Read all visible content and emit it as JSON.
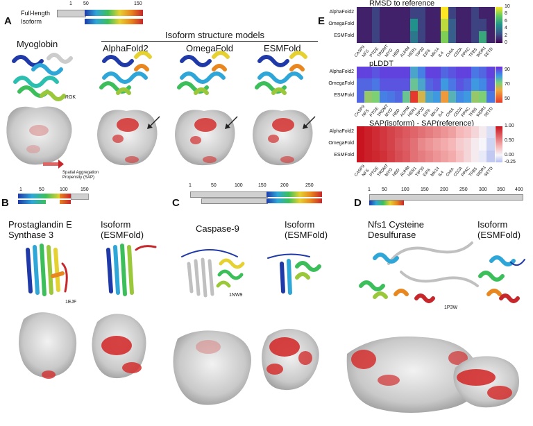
{
  "panels": {
    "A": {
      "letter": "A",
      "legend": {
        "full_label": "Full-length",
        "iso_label": "Isoform",
        "ticks": [
          "1",
          "50",
          "150"
        ]
      },
      "protein": "Myoglobin",
      "group_title": "Isoform structure models",
      "models": [
        "AlphaFold2",
        "OmegaFold",
        "ESMFold"
      ],
      "pdb": "3RGK",
      "sap_label_1": "Spatial Aggregation",
      "sap_label_2": "Propensity (SAP)"
    },
    "B": {
      "letter": "B",
      "ticks": [
        "1",
        "50",
        "100",
        "150"
      ],
      "protein_1": "Prostaglandin E",
      "protein_2": "Synthase 3",
      "iso_1": "Isoform",
      "iso_2": "(ESMFold)",
      "pdb": "1EJF"
    },
    "C": {
      "letter": "C",
      "ticks": [
        "1",
        "50",
        "100",
        "150",
        "200",
        "250"
      ],
      "protein": "Caspase-9",
      "iso_1": "Isoform",
      "iso_2": "(ESMFold)",
      "pdb": "1NW9"
    },
    "D": {
      "letter": "D",
      "ticks": [
        "1",
        "50",
        "100",
        "150",
        "200",
        "250",
        "300",
        "350",
        "400"
      ],
      "protein_1": "Nfs1 Cysteine",
      "protein_2": "Desulfurase",
      "iso_1": "Isoform",
      "iso_2": "(ESMFold)",
      "pdb": "1P3W"
    },
    "E": {
      "letter": "E"
    }
  },
  "chart_data": [
    {
      "type": "heatmap",
      "title": "RMSD to reference",
      "rows": [
        "AlphaFold2",
        "OmegaFold",
        "ESMFold"
      ],
      "columns": [
        "CASP9",
        "NFS",
        "PTGE",
        "TRDMT",
        "MYG",
        "HBD",
        "AUHM",
        "HER1",
        "TIP30",
        "EIF6",
        "MK14",
        "IL4",
        "CHIA",
        "CD2A",
        "PPAC",
        "TFB5",
        "WDR1",
        "SETD"
      ],
      "values": [
        [
          1,
          1,
          2,
          1,
          1,
          1,
          1,
          2,
          2,
          1,
          1,
          10,
          2,
          1,
          1,
          2,
          1,
          1
        ],
        [
          1,
          1,
          2,
          1,
          1,
          1,
          1,
          5,
          2,
          1,
          1,
          9,
          3,
          1,
          1,
          2,
          2,
          1
        ],
        [
          1,
          1,
          2,
          1,
          1,
          1,
          1,
          4,
          2,
          1,
          1,
          8,
          3,
          1,
          1,
          2,
          6,
          1
        ]
      ],
      "colorbar": {
        "min": 0,
        "max": 10,
        "ticks": [
          "10",
          "8",
          "6",
          "4",
          "2",
          "0"
        ]
      }
    },
    {
      "type": "heatmap",
      "title": "pLDDT",
      "rows": [
        "AlphaFold2",
        "OmegaFold",
        "ESMFold"
      ],
      "columns": [
        "CASP9",
        "NFS",
        "PTGE",
        "TRDMT",
        "MYG",
        "HBD",
        "AUHM",
        "HER1",
        "TIP30",
        "EIF6",
        "MK14",
        "IL4",
        "CHIA",
        "CD2A",
        "PPAC",
        "TFB5",
        "WDR1",
        "SETD"
      ],
      "values": [
        [
          92,
          92,
          90,
          92,
          92,
          92,
          92,
          80,
          85,
          92,
          92,
          88,
          90,
          92,
          92,
          86,
          88,
          92
        ],
        [
          88,
          88,
          86,
          90,
          90,
          90,
          90,
          75,
          80,
          88,
          90,
          82,
          86,
          90,
          88,
          82,
          84,
          90
        ],
        [
          88,
          70,
          72,
          85,
          86,
          88,
          75,
          45,
          65,
          80,
          82,
          60,
          78,
          84,
          82,
          70,
          72,
          86
        ]
      ],
      "colorbar": {
        "min": 45,
        "max": 95,
        "ticks": [
          "90",
          "70",
          "50"
        ]
      }
    },
    {
      "type": "heatmap",
      "title": "SAP(isoform) - SAP(reference)",
      "rows": [
        "AlphaFold2",
        "OmegaFold",
        "ESMFold"
      ],
      "columns": [
        "CASP9",
        "NFS",
        "PTGE",
        "TRDMT",
        "MYG",
        "HBD",
        "AUHM",
        "HER1",
        "TIP30",
        "EIF6",
        "MK14",
        "IL4",
        "CHIA",
        "CD2A",
        "PPAC",
        "TFB5",
        "WDR1",
        "SETD"
      ],
      "values": [
        [
          1.0,
          0.95,
          0.9,
          0.85,
          0.8,
          0.75,
          0.7,
          0.65,
          0.6,
          0.55,
          0.5,
          0.45,
          0.4,
          0.3,
          0.25,
          0.15,
          0.05,
          -0.1
        ],
        [
          1.0,
          0.95,
          0.9,
          0.85,
          0.8,
          0.72,
          0.68,
          0.6,
          0.5,
          0.45,
          0.4,
          0.35,
          0.3,
          0.2,
          0.15,
          0.05,
          0.0,
          -0.15
        ],
        [
          1.0,
          0.95,
          0.92,
          0.88,
          0.82,
          0.75,
          0.7,
          0.6,
          0.55,
          0.5,
          0.45,
          0.4,
          0.35,
          0.25,
          0.15,
          0.05,
          -0.05,
          -0.2
        ]
      ],
      "colorbar": {
        "min": -0.25,
        "max": 1.0,
        "ticks": [
          "1.00",
          "0.50",
          "0.00",
          "-0.25"
        ]
      }
    }
  ]
}
